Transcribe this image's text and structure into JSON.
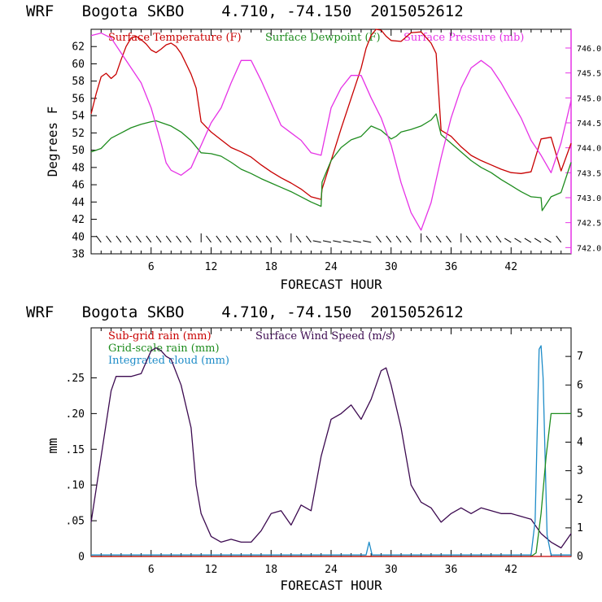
{
  "chart_data": [
    {
      "type": "line",
      "title": "WRF   Bogota SKBO    4.710, -74.150  2015052612",
      "xlabel": "FORECAST HOUR",
      "ylabel": "Degrees F",
      "xlim": [
        0,
        48
      ],
      "ylim": [
        38,
        64
      ],
      "y2lim": [
        741.875,
        746.375
      ],
      "xticks": [
        6,
        12,
        18,
        24,
        30,
        36,
        42
      ],
      "yticks": [
        38,
        40,
        42,
        44,
        46,
        48,
        50,
        52,
        54,
        56,
        58,
        60,
        62
      ],
      "y2ticks": [
        "742.0",
        "742.5",
        "743.0",
        "743.5",
        "744.0",
        "744.5",
        "745.0",
        "745.5",
        "746.0"
      ],
      "colors": {
        "temperature": "#c80000",
        "dewpoint": "#1e8c1e",
        "pressure": "#e632e6"
      },
      "legend": [
        "Surface Temperature (F)",
        "Surface Dewpoint (F)",
        "Surface Pressure (mb)"
      ],
      "wind_barb_level": 39.8,
      "series": [
        {
          "name": "Surface Temperature (F)",
          "axis": "left",
          "x": [
            0,
            0.5,
            1,
            1.5,
            2,
            2.5,
            3,
            3.5,
            4,
            4.5,
            5,
            5.5,
            6,
            6.5,
            7,
            7.5,
            8,
            8.5,
            9,
            9.5,
            10,
            10.5,
            11,
            12,
            13,
            14,
            15,
            16,
            17,
            18,
            19,
            20,
            21,
            22,
            23,
            23.1,
            24,
            25,
            26,
            27,
            27.5,
            28,
            28.5,
            29,
            29.5,
            30,
            31,
            32,
            33,
            34,
            34.5,
            35,
            36,
            37,
            38,
            39,
            40,
            41,
            42,
            43,
            44,
            45,
            46,
            47,
            48
          ],
          "y": [
            54.2,
            56.5,
            58.5,
            58.9,
            58.3,
            58.8,
            60.5,
            62,
            63,
            63.2,
            62.8,
            62.3,
            61.6,
            61.3,
            61.7,
            62.2,
            62.4,
            62,
            61.2,
            60,
            58.8,
            57.2,
            53.3,
            52.1,
            51.2,
            50.3,
            49.8,
            49.2,
            48.3,
            47.5,
            46.8,
            46.2,
            45.5,
            44.6,
            44.3,
            45.5,
            48.8,
            52.5,
            56,
            59.5,
            61.8,
            63.3,
            64,
            63.9,
            63.2,
            62.7,
            62.6,
            63.6,
            63.7,
            62.4,
            61.2,
            52.3,
            51.6,
            50.4,
            49.4,
            48.8,
            48.3,
            47.8,
            47.4,
            47.3,
            47.5,
            51.3,
            51.5,
            47.6,
            50.8
          ]
        },
        {
          "name": "Surface Dewpoint (F)",
          "axis": "left",
          "x": [
            0,
            1,
            2,
            3,
            4,
            5,
            6,
            6.5,
            7,
            8,
            9,
            10,
            11,
            12,
            13,
            14,
            15,
            16,
            17,
            18,
            19,
            20,
            21,
            22,
            23,
            23.1,
            24,
            25,
            26,
            27,
            27.5,
            28,
            29,
            30,
            30.5,
            31,
            32,
            33,
            34,
            34.5,
            35,
            36,
            37,
            38,
            39,
            40,
            41,
            42,
            43,
            44,
            45,
            45.1,
            46,
            47,
            48
          ],
          "y": [
            49.8,
            50.2,
            51.4,
            52,
            52.6,
            53,
            53.3,
            53.4,
            53.2,
            52.8,
            52.1,
            51.1,
            49.7,
            49.6,
            49.3,
            48.6,
            47.8,
            47.3,
            46.7,
            46.2,
            45.7,
            45.2,
            44.6,
            44,
            43.5,
            46.3,
            48.8,
            50.3,
            51.2,
            51.6,
            52.2,
            52.8,
            52.3,
            51.3,
            51.6,
            52.1,
            52.4,
            52.8,
            53.5,
            54.2,
            51.8,
            50.8,
            49.8,
            48.8,
            48,
            47.4,
            46.6,
            45.9,
            45.2,
            44.6,
            44.5,
            43,
            44.6,
            45.1,
            48.6
          ]
        },
        {
          "name": "Surface Pressure (mb)",
          "axis": "right",
          "x": [
            0,
            1,
            2,
            3,
            4,
            5,
            6,
            7,
            7.5,
            8,
            9,
            10,
            11,
            12,
            13,
            14,
            15,
            16,
            17,
            18,
            19,
            20,
            21,
            22,
            23,
            24,
            25,
            26,
            27,
            28,
            29,
            30,
            31,
            32,
            33,
            34,
            35,
            36,
            37,
            38,
            39,
            40,
            41,
            42,
            43,
            44,
            45,
            46,
            47,
            48
          ],
          "y": [
            746.25,
            746.3,
            746.2,
            745.9,
            745.6,
            745.3,
            744.8,
            744.1,
            743.7,
            743.55,
            743.45,
            743.6,
            744.05,
            744.5,
            744.8,
            745.3,
            745.75,
            745.75,
            745.35,
            744.9,
            744.45,
            744.3,
            744.15,
            743.9,
            743.85,
            744.8,
            745.2,
            745.45,
            745.45,
            745.0,
            744.6,
            744.05,
            743.3,
            742.7,
            742.35,
            742.9,
            743.8,
            744.6,
            745.2,
            745.6,
            745.75,
            745.6,
            745.3,
            744.95,
            744.6,
            744.15,
            743.85,
            743.5,
            744.1,
            744.95
          ]
        }
      ]
    },
    {
      "type": "line",
      "title": "WRF   Bogota SKBO    4.710, -74.150  2015052612",
      "xlabel": "FORECAST HOUR",
      "ylabel": "mm",
      "xlim": [
        0,
        48
      ],
      "ylim": [
        0,
        0.32
      ],
      "y2lim": [
        0,
        8
      ],
      "xticks": [
        6,
        12,
        18,
        24,
        30,
        36,
        42
      ],
      "yticks": [
        "0",
        ".05",
        ".10",
        ".15",
        ".20",
        ".25"
      ],
      "yticks_values": [
        0,
        0.05,
        0.1,
        0.15,
        0.2,
        0.25
      ],
      "y2ticks": [
        "0",
        "1",
        "2",
        "3",
        "4",
        "5",
        "6",
        "7"
      ],
      "colors": {
        "subgrid": "#c80000",
        "gridscale": "#1e8c1e",
        "cloud": "#1e8cc8",
        "wind": "#3c0a50"
      },
      "legend": [
        "Sub-grid rain (mm)",
        "Grid-scale rain (mm)",
        "Integrated cloud (mm)",
        "Surface Wind Speed (m/s)"
      ],
      "series": [
        {
          "name": "Surface Wind Speed (m/s)",
          "axis": "right",
          "x": [
            0,
            1,
            2,
            2.5,
            3,
            4,
            5,
            5.5,
            6,
            6.5,
            7,
            7.5,
            8,
            9,
            10,
            10.5,
            11,
            12,
            13,
            14,
            15,
            16,
            17,
            18,
            19,
            20,
            21,
            22,
            23,
            24,
            25,
            26,
            27,
            28,
            29,
            29.5,
            30,
            31,
            32,
            33,
            34,
            35,
            36,
            37,
            38,
            39,
            40,
            41,
            42,
            43,
            44,
            45,
            46,
            47,
            48
          ],
          "y": [
            1.2,
            3.5,
            5.8,
            6.3,
            6.3,
            6.3,
            6.4,
            6.8,
            7.2,
            7.3,
            7.2,
            7.0,
            6.9,
            6.0,
            4.5,
            2.5,
            1.5,
            0.7,
            0.5,
            0.6,
            0.5,
            0.5,
            0.9,
            1.5,
            1.6,
            1.1,
            1.8,
            1.6,
            3.5,
            4.8,
            5.0,
            5.3,
            4.8,
            5.5,
            6.5,
            6.6,
            6.0,
            4.5,
            2.5,
            1.9,
            1.7,
            1.2,
            1.5,
            1.7,
            1.5,
            1.7,
            1.6,
            1.5,
            1.5,
            1.4,
            1.3,
            0.8,
            0.5,
            0.3,
            0.8
          ]
        },
        {
          "name": "Integrated cloud (mm)",
          "axis": "left",
          "x": [
            0,
            27.5,
            27.8,
            28.1,
            28.4,
            44,
            44.4,
            44.8,
            45.0,
            45.2,
            45.6,
            46,
            48
          ],
          "y": [
            0.002,
            0.002,
            0.02,
            0.002,
            0.002,
            0.002,
            0.05,
            0.29,
            0.295,
            0.25,
            0.03,
            0.002,
            0.002
          ]
        },
        {
          "name": "Grid-scale rain (mm)",
          "axis": "left",
          "x": [
            0,
            44,
            44.5,
            45,
            45.5,
            46,
            48
          ],
          "y": [
            0,
            0,
            0.005,
            0.06,
            0.14,
            0.2,
            0.2
          ]
        },
        {
          "name": "Sub-grid rain (mm)",
          "axis": "left",
          "x": [
            0,
            48
          ],
          "y": [
            0,
            0
          ]
        }
      ]
    }
  ]
}
